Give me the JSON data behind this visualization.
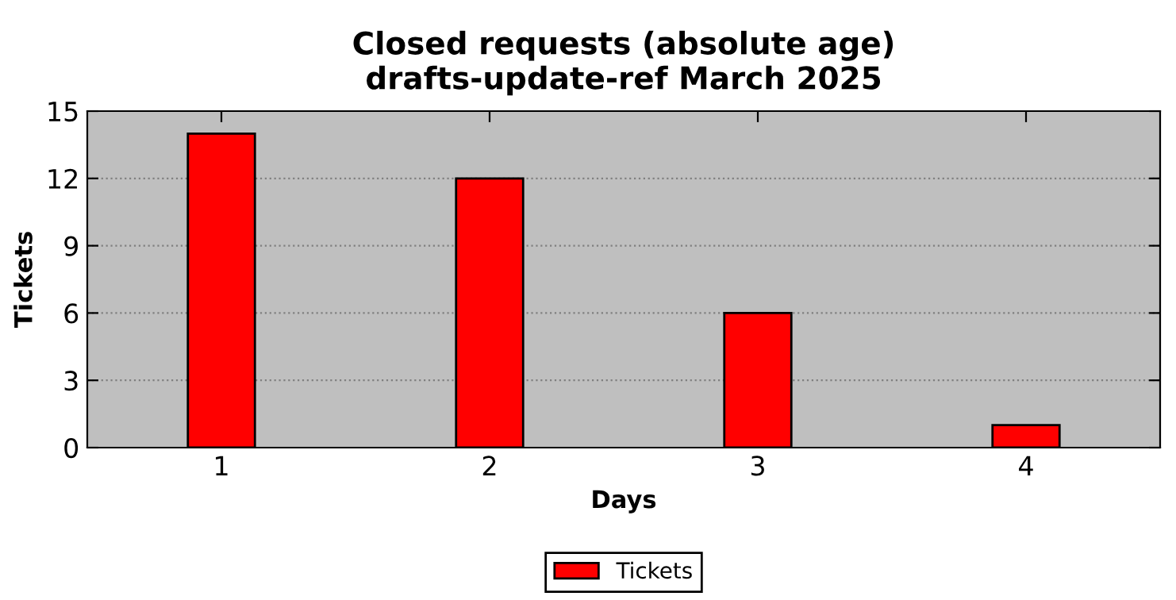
{
  "chart_data": {
    "type": "bar",
    "title": "Closed requests (absolute age)\ndrafts-update-ref March 2025",
    "xlabel": "Days",
    "ylabel": "Tickets",
    "x": [
      1,
      2,
      3,
      4
    ],
    "series": [
      {
        "name": "Tickets",
        "color": "#ff0000",
        "values": [
          14,
          12,
          6,
          1
        ]
      }
    ],
    "xlim": [
      0.5,
      4.5
    ],
    "xticks": [
      1,
      2,
      3,
      4
    ],
    "ylim": [
      0,
      15
    ],
    "yticks": [
      0,
      3,
      6,
      9,
      12,
      15
    ],
    "grid": "y",
    "legend": "bottom"
  }
}
